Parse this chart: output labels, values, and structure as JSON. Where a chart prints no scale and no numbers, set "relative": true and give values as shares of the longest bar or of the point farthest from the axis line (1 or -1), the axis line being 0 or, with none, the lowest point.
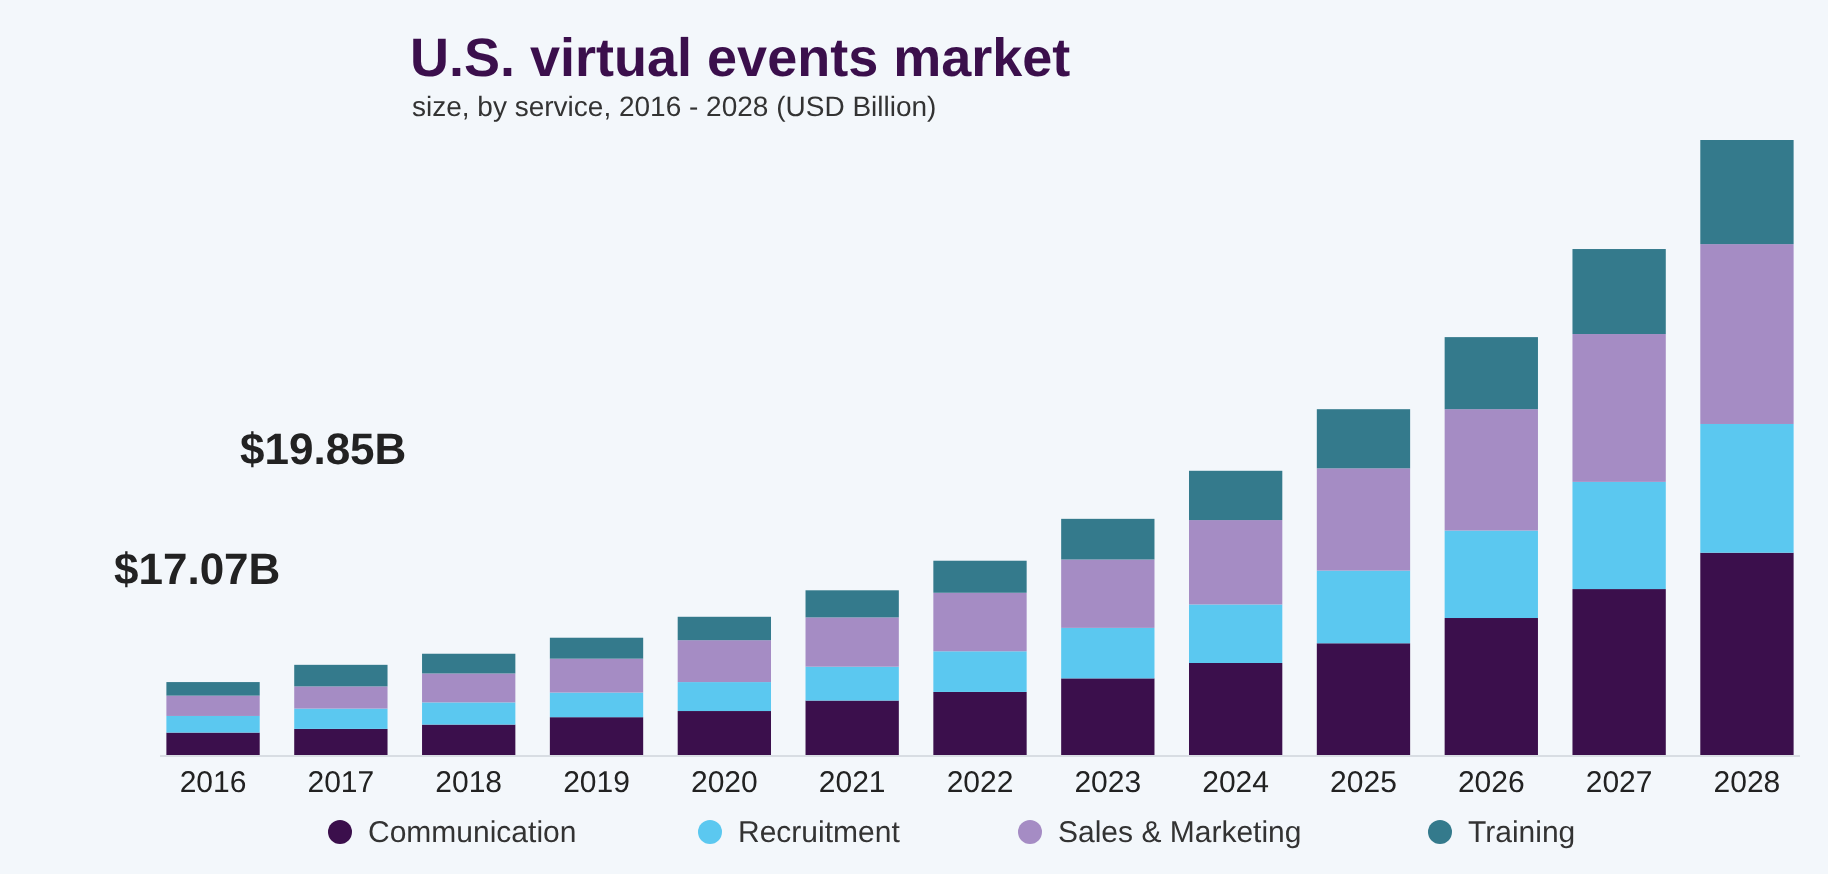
{
  "chart_data": {
    "type": "bar",
    "title": "U.S. virtual events market",
    "subtitle": "size, by service, 2016 - 2028 (USD Billion)",
    "stacked": true,
    "relative": true,
    "legend": "bottom",
    "annotations": [
      "$19.85B",
      "$17.07B"
    ],
    "categories": [
      "2016",
      "2017",
      "2018",
      "2019",
      "2020",
      "2021",
      "2022",
      "2023",
      "2024",
      "2025",
      "2026",
      "2027",
      "2028"
    ],
    "series": [
      {
        "name": "Communication",
        "color": "#3b0f4c",
        "values": [
          0.038,
          0.044,
          0.051,
          0.063,
          0.073,
          0.09,
          0.104,
          0.126,
          0.151,
          0.183,
          0.224,
          0.271,
          0.33
        ]
      },
      {
        "name": "Recruitment",
        "color": "#5bc8f0",
        "values": [
          0.027,
          0.033,
          0.036,
          0.04,
          0.047,
          0.055,
          0.066,
          0.082,
          0.095,
          0.118,
          0.142,
          0.174,
          0.209
        ]
      },
      {
        "name": "Sales & Marketing",
        "color": "#a58cc4",
        "values": [
          0.033,
          0.036,
          0.047,
          0.055,
          0.068,
          0.08,
          0.095,
          0.111,
          0.137,
          0.166,
          0.197,
          0.24,
          0.292
        ]
      },
      {
        "name": "Training",
        "color": "#347a8c",
        "values": [
          0.022,
          0.035,
          0.032,
          0.034,
          0.038,
          0.044,
          0.052,
          0.066,
          0.08,
          0.096,
          0.117,
          0.138,
          0.169
        ]
      }
    ]
  }
}
